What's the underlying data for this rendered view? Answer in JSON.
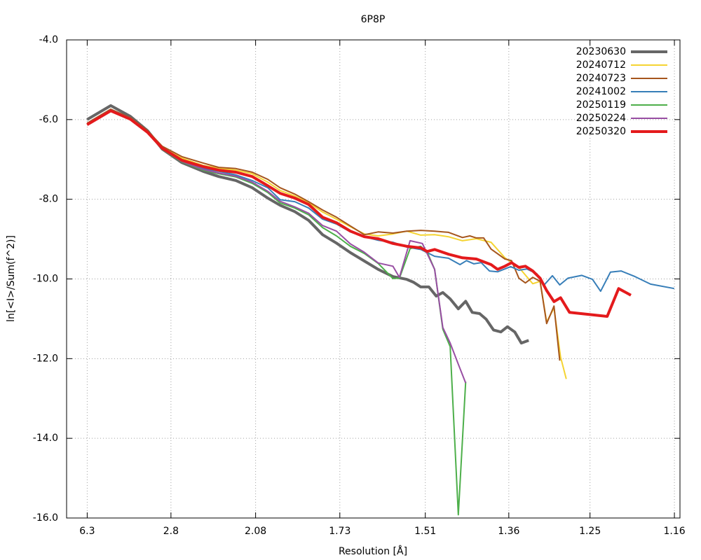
{
  "chart_data": {
    "type": "line",
    "title": "6P8P",
    "x_label": "Resolution [Å]",
    "y_label": "ln[<I>/Sum(f^2)]",
    "xlim": [
      0,
      0.75
    ],
    "ylim": [
      -16,
      -4
    ],
    "xticks": [
      {
        "value": 0.0252,
        "label": "6.3"
      },
      {
        "value": 0.1276,
        "label": "2.8"
      },
      {
        "value": 0.2311,
        "label": "2.08"
      },
      {
        "value": 0.3341,
        "label": "1.73"
      },
      {
        "value": 0.4386,
        "label": "1.51"
      },
      {
        "value": 0.5407,
        "label": "1.36"
      },
      {
        "value": 0.64,
        "label": "1.25"
      },
      {
        "value": 0.7432,
        "label": "1.16"
      }
    ],
    "yticks": [
      {
        "value": -16,
        "label": "-16.0"
      },
      {
        "value": -14,
        "label": "-14.0"
      },
      {
        "value": -12,
        "label": "-12.0"
      },
      {
        "value": -10,
        "label": "-10.0"
      },
      {
        "value": -8,
        "label": "-8.0"
      },
      {
        "value": -6,
        "label": "-6.0"
      },
      {
        "value": -4,
        "label": "-4.0"
      }
    ],
    "grid": true,
    "legend_position": "top-right",
    "series": [
      {
        "name": "20230630",
        "color": "#666666",
        "width": 4,
        "x": [
          0.025,
          0.054,
          0.078,
          0.099,
          0.117,
          0.141,
          0.167,
          0.186,
          0.207,
          0.227,
          0.246,
          0.261,
          0.279,
          0.296,
          0.313,
          0.33,
          0.347,
          0.364,
          0.381,
          0.399,
          0.416,
          0.424,
          0.433,
          0.443,
          0.452,
          0.46,
          0.469,
          0.479,
          0.488,
          0.496,
          0.505,
          0.513,
          0.522,
          0.531,
          0.539,
          0.548,
          0.556,
          0.565
        ],
        "values": [
          -6.0,
          -5.65,
          -5.92,
          -6.28,
          -6.74,
          -7.08,
          -7.3,
          -7.43,
          -7.53,
          -7.71,
          -7.97,
          -8.15,
          -8.31,
          -8.53,
          -8.89,
          -9.1,
          -9.34,
          -9.55,
          -9.76,
          -9.94,
          -10.01,
          -10.08,
          -10.2,
          -10.2,
          -10.43,
          -10.34,
          -10.5,
          -10.75,
          -10.56,
          -10.84,
          -10.87,
          -11.01,
          -11.28,
          -11.33,
          -11.2,
          -11.33,
          -11.61,
          -11.54
        ]
      },
      {
        "name": "20240712",
        "color": "#f5d432",
        "width": 2,
        "x": [
          0.025,
          0.054,
          0.078,
          0.099,
          0.117,
          0.141,
          0.167,
          0.186,
          0.207,
          0.227,
          0.246,
          0.261,
          0.279,
          0.296,
          0.313,
          0.33,
          0.347,
          0.364,
          0.381,
          0.399,
          0.416,
          0.433,
          0.45,
          0.467,
          0.484,
          0.501,
          0.519,
          0.536,
          0.553,
          0.57,
          0.579,
          0.587,
          0.596,
          0.604,
          0.611
        ],
        "values": [
          -6.11,
          -5.74,
          -5.97,
          -6.3,
          -6.71,
          -6.97,
          -7.15,
          -7.22,
          -7.27,
          -7.36,
          -7.57,
          -7.78,
          -7.92,
          -8.09,
          -8.32,
          -8.5,
          -8.69,
          -8.87,
          -8.92,
          -8.87,
          -8.8,
          -8.9,
          -8.89,
          -8.94,
          -9.04,
          -8.99,
          -9.08,
          -9.47,
          -9.71,
          -10.12,
          -10.06,
          -11.08,
          -10.73,
          -11.96,
          -12.51
        ]
      },
      {
        "name": "20240723",
        "color": "#a6561d",
        "width": 2,
        "x": [
          0.025,
          0.054,
          0.078,
          0.099,
          0.117,
          0.141,
          0.167,
          0.186,
          0.207,
          0.227,
          0.246,
          0.261,
          0.279,
          0.296,
          0.313,
          0.33,
          0.347,
          0.364,
          0.381,
          0.399,
          0.416,
          0.433,
          0.45,
          0.467,
          0.484,
          0.493,
          0.501,
          0.51,
          0.519,
          0.536,
          0.544,
          0.553,
          0.561,
          0.57,
          0.579,
          0.587,
          0.596,
          0.603
        ],
        "values": [
          -6.09,
          -5.74,
          -5.95,
          -6.28,
          -6.67,
          -6.93,
          -7.09,
          -7.2,
          -7.23,
          -7.32,
          -7.5,
          -7.71,
          -7.87,
          -8.06,
          -8.27,
          -8.45,
          -8.67,
          -8.89,
          -8.82,
          -8.85,
          -8.8,
          -8.78,
          -8.8,
          -8.83,
          -8.96,
          -8.92,
          -8.97,
          -8.97,
          -9.25,
          -9.5,
          -9.54,
          -9.98,
          -10.1,
          -9.96,
          -10.06,
          -11.12,
          -10.68,
          -12.05
        ]
      },
      {
        "name": "20241002",
        "color": "#377eb8",
        "width": 2,
        "x": [
          0.025,
          0.054,
          0.078,
          0.099,
          0.117,
          0.141,
          0.167,
          0.186,
          0.207,
          0.227,
          0.246,
          0.261,
          0.279,
          0.296,
          0.313,
          0.33,
          0.347,
          0.364,
          0.381,
          0.399,
          0.416,
          0.433,
          0.45,
          0.467,
          0.481,
          0.489,
          0.498,
          0.507,
          0.517,
          0.527,
          0.543,
          0.553,
          0.563,
          0.575,
          0.584,
          0.594,
          0.603,
          0.613,
          0.63,
          0.643,
          0.653,
          0.665,
          0.678,
          0.695,
          0.714,
          0.743
        ],
        "values": [
          -6.11,
          -5.76,
          -5.97,
          -6.3,
          -6.72,
          -7.04,
          -7.23,
          -7.3,
          -7.39,
          -7.53,
          -7.71,
          -8.01,
          -8.06,
          -8.22,
          -8.5,
          -8.62,
          -8.82,
          -8.94,
          -9.03,
          -9.08,
          -9.2,
          -9.26,
          -9.43,
          -9.48,
          -9.64,
          -9.54,
          -9.62,
          -9.59,
          -9.8,
          -9.82,
          -9.69,
          -9.78,
          -9.75,
          -9.87,
          -10.15,
          -9.92,
          -10.15,
          -9.98,
          -9.91,
          -10.01,
          -10.31,
          -9.83,
          -9.8,
          -9.94,
          -10.13,
          -10.24
        ]
      },
      {
        "name": "20250119",
        "color": "#4daf4a",
        "width": 2,
        "x": [
          0.025,
          0.054,
          0.078,
          0.099,
          0.117,
          0.141,
          0.167,
          0.186,
          0.207,
          0.227,
          0.246,
          0.261,
          0.279,
          0.296,
          0.313,
          0.33,
          0.347,
          0.364,
          0.381,
          0.399,
          0.407,
          0.42,
          0.433,
          0.441,
          0.45,
          0.46,
          0.469,
          0.479,
          0.488
        ],
        "values": [
          -6.11,
          -5.76,
          -5.97,
          -6.3,
          -6.74,
          -7.06,
          -7.27,
          -7.36,
          -7.44,
          -7.6,
          -7.83,
          -8.09,
          -8.22,
          -8.39,
          -8.71,
          -8.92,
          -9.18,
          -9.36,
          -9.61,
          -9.99,
          -9.98,
          -9.24,
          -9.18,
          -9.33,
          -9.76,
          -11.26,
          -11.7,
          -15.92,
          -12.58
        ]
      },
      {
        "name": "20250224",
        "color": "#984ea3",
        "width": 2,
        "x": [
          0.025,
          0.054,
          0.078,
          0.099,
          0.117,
          0.141,
          0.167,
          0.186,
          0.207,
          0.227,
          0.246,
          0.261,
          0.279,
          0.296,
          0.313,
          0.33,
          0.347,
          0.364,
          0.381,
          0.399,
          0.407,
          0.42,
          0.435,
          0.45,
          0.46,
          0.469,
          0.479,
          0.488
        ],
        "values": [
          -6.11,
          -5.76,
          -5.97,
          -6.3,
          -6.73,
          -7.05,
          -7.25,
          -7.34,
          -7.42,
          -7.57,
          -7.8,
          -8.05,
          -8.19,
          -8.35,
          -8.66,
          -8.8,
          -9.12,
          -9.33,
          -9.6,
          -9.68,
          -9.96,
          -9.04,
          -9.11,
          -9.76,
          -11.22,
          -11.61,
          -12.14,
          -12.61
        ]
      },
      {
        "name": "20250320",
        "color": "#e41a1c",
        "width": 4,
        "x": [
          0.025,
          0.054,
          0.078,
          0.099,
          0.117,
          0.141,
          0.167,
          0.186,
          0.207,
          0.227,
          0.246,
          0.261,
          0.279,
          0.296,
          0.313,
          0.33,
          0.347,
          0.364,
          0.381,
          0.399,
          0.416,
          0.433,
          0.441,
          0.45,
          0.467,
          0.484,
          0.501,
          0.519,
          0.527,
          0.536,
          0.544,
          0.553,
          0.561,
          0.57,
          0.579,
          0.587,
          0.596,
          0.604,
          0.615,
          0.661,
          0.675,
          0.69
        ],
        "values": [
          -6.13,
          -5.78,
          -5.99,
          -6.32,
          -6.72,
          -7.02,
          -7.18,
          -7.27,
          -7.32,
          -7.43,
          -7.66,
          -7.85,
          -7.97,
          -8.13,
          -8.45,
          -8.59,
          -8.8,
          -8.94,
          -8.99,
          -9.11,
          -9.18,
          -9.22,
          -9.31,
          -9.26,
          -9.38,
          -9.47,
          -9.5,
          -9.64,
          -9.76,
          -9.68,
          -9.59,
          -9.71,
          -9.68,
          -9.8,
          -9.98,
          -10.29,
          -10.57,
          -10.47,
          -10.84,
          -10.94,
          -10.24,
          -10.41
        ]
      }
    ]
  }
}
